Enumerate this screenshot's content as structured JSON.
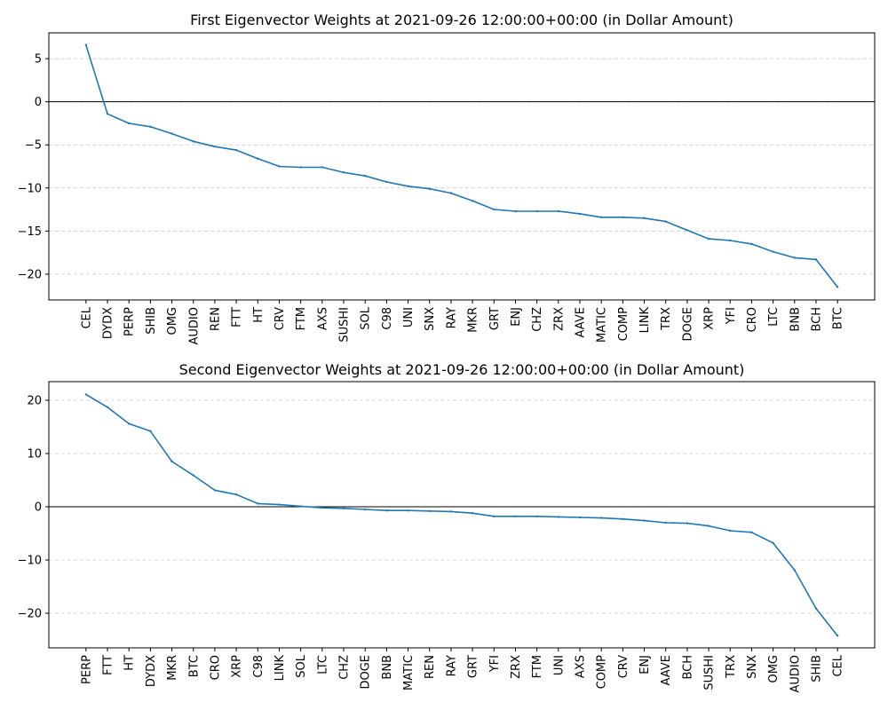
{
  "chart_data": [
    {
      "type": "line",
      "title": "First Eigenvector Weights at 2021-09-26 12:00:00+00:00 (in Dollar Amount)",
      "xlabel": "",
      "ylabel": "",
      "ylim": [
        -23,
        8
      ],
      "yticks": [
        5,
        0,
        -5,
        -10,
        -15,
        -20
      ],
      "ytick_labels": [
        "5",
        "0",
        "−5",
        "−10",
        "−15",
        "−20"
      ],
      "grid": "horizontal-dashed",
      "reference_line": 0,
      "line_color": "#1f77b4",
      "categories": [
        "CEL",
        "DYDX",
        "PERP",
        "SHIB",
        "OMG",
        "AUDIO",
        "REN",
        "FTT",
        "HT",
        "CRV",
        "FTM",
        "AXS",
        "SUSHI",
        "SOL",
        "C98",
        "UNI",
        "SNX",
        "RAY",
        "MKR",
        "GRT",
        "ENJ",
        "CHZ",
        "ZRX",
        "AAVE",
        "MATIC",
        "COMP",
        "LINK",
        "TRX",
        "DOGE",
        "XRP",
        "YFI",
        "CRO",
        "LTC",
        "BNB",
        "BCH",
        "BTC"
      ],
      "values": [
        6.6,
        -1.4,
        -2.5,
        -2.9,
        -3.7,
        -4.6,
        -5.2,
        -5.6,
        -6.6,
        -7.5,
        -7.6,
        -7.6,
        -8.2,
        -8.6,
        -9.3,
        -9.8,
        -10.1,
        -10.6,
        -11.5,
        -12.5,
        -12.7,
        -12.7,
        -12.7,
        -13.0,
        -13.4,
        -13.4,
        -13.5,
        -13.9,
        -14.9,
        -15.9,
        -16.1,
        -16.5,
        -17.4,
        -18.1,
        -18.3,
        -21.5
      ]
    },
    {
      "type": "line",
      "title": "Second Eigenvector Weights at 2021-09-26 12:00:00+00:00 (in Dollar Amount)",
      "xlabel": "",
      "ylabel": "",
      "ylim": [
        -26.5,
        23.5
      ],
      "yticks": [
        20,
        10,
        0,
        -10,
        -20
      ],
      "ytick_labels": [
        "20",
        "10",
        "0",
        "−10",
        "−20"
      ],
      "grid": "horizontal-dashed",
      "reference_line": 0,
      "line_color": "#1f77b4",
      "categories": [
        "PERP",
        "FTT",
        "HT",
        "DYDX",
        "MKR",
        "BTC",
        "CRO",
        "XRP",
        "C98",
        "LINK",
        "SOL",
        "LTC",
        "CHZ",
        "DOGE",
        "BNB",
        "MATIC",
        "REN",
        "RAY",
        "GRT",
        "YFI",
        "ZRX",
        "FTM",
        "UNI",
        "AXS",
        "COMP",
        "CRV",
        "ENJ",
        "AAVE",
        "BCH",
        "SUSHI",
        "TRX",
        "SNX",
        "OMG",
        "AUDIO",
        "SHIB",
        "CEL"
      ],
      "values": [
        21.1,
        18.7,
        15.6,
        14.2,
        8.5,
        5.9,
        3.1,
        2.3,
        0.6,
        0.4,
        0.1,
        -0.2,
        -0.3,
        -0.5,
        -0.7,
        -0.7,
        -0.8,
        -0.9,
        -1.2,
        -1.8,
        -1.8,
        -1.8,
        -1.9,
        -2.0,
        -2.1,
        -2.3,
        -2.6,
        -3.0,
        -3.1,
        -3.6,
        -4.5,
        -4.8,
        -6.8,
        -11.9,
        -19.1,
        -24.2
      ]
    }
  ]
}
